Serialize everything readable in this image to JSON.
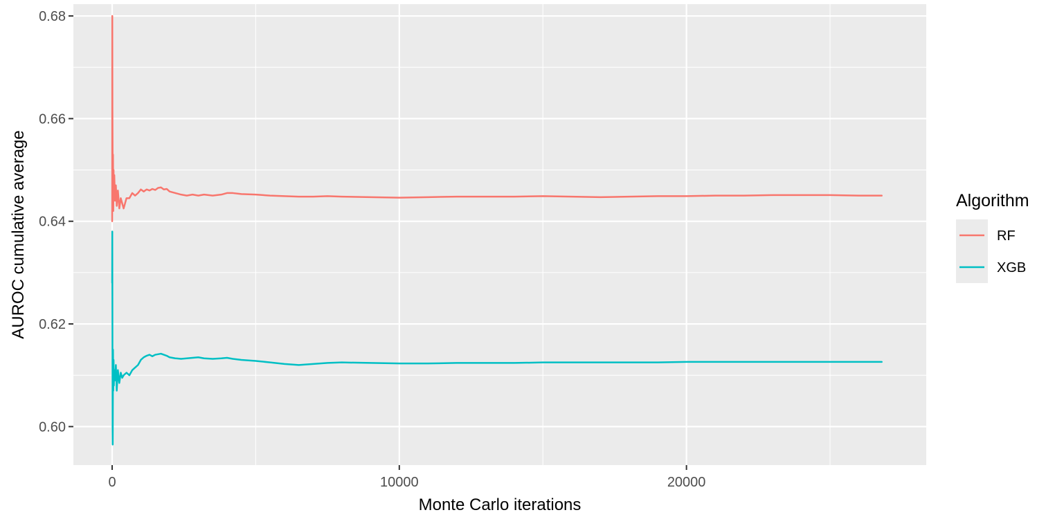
{
  "chart_data": {
    "type": "line",
    "title": "",
    "xlabel": "Monte Carlo iterations",
    "ylabel": "AUROC cumulative average",
    "xlim": [
      -1350,
      28350
    ],
    "ylim": [
      0.5925,
      0.6823
    ],
    "x_ticks": [
      0,
      10000,
      20000
    ],
    "x_tick_labels": [
      "0",
      "10000",
      "20000"
    ],
    "y_ticks": [
      0.6,
      0.62,
      0.64,
      0.66,
      0.68
    ],
    "y_tick_labels": [
      "0.60",
      "0.62",
      "0.64",
      "0.66",
      "0.68"
    ],
    "grid": true,
    "background": "#ebebeb",
    "legend": {
      "title": "Algorithm",
      "position": "right",
      "entries": [
        "RF",
        "XGB"
      ]
    },
    "series": [
      {
        "name": "RF",
        "color": "#F8766D",
        "x": [
          1,
          5,
          10,
          20,
          30,
          40,
          50,
          60,
          75,
          100,
          130,
          160,
          200,
          250,
          300,
          350,
          400,
          500,
          600,
          700,
          800,
          900,
          1000,
          1100,
          1200,
          1300,
          1400,
          1500,
          1600,
          1700,
          1800,
          1900,
          2000,
          2200,
          2400,
          2600,
          2800,
          3000,
          3200,
          3500,
          3800,
          4000,
          4200,
          4500,
          5000,
          5500,
          6000,
          6500,
          7000,
          7500,
          8000,
          9000,
          10000,
          11000,
          12000,
          13000,
          14000,
          15000,
          16000,
          17000,
          18000,
          19000,
          20000,
          21000,
          22000,
          23000,
          24000,
          25000,
          26000,
          26800
        ],
        "values": [
          0.64,
          0.68,
          0.662,
          0.648,
          0.653,
          0.642,
          0.65,
          0.645,
          0.649,
          0.644,
          0.647,
          0.643,
          0.646,
          0.6425,
          0.6445,
          0.6435,
          0.6425,
          0.6445,
          0.6445,
          0.6455,
          0.645,
          0.6455,
          0.6462,
          0.6458,
          0.6462,
          0.646,
          0.6463,
          0.6461,
          0.6465,
          0.6466,
          0.6462,
          0.6463,
          0.6458,
          0.6455,
          0.6452,
          0.645,
          0.6452,
          0.645,
          0.6452,
          0.645,
          0.6452,
          0.6455,
          0.6455,
          0.6453,
          0.6452,
          0.645,
          0.6449,
          0.6448,
          0.6448,
          0.6449,
          0.6448,
          0.6447,
          0.6446,
          0.6447,
          0.6448,
          0.6448,
          0.6448,
          0.6449,
          0.6448,
          0.6447,
          0.6448,
          0.6449,
          0.6449,
          0.645,
          0.645,
          0.6451,
          0.6451,
          0.6451,
          0.645,
          0.645
        ]
      },
      {
        "name": "XGB",
        "color": "#00BFC4",
        "x": [
          1,
          5,
          10,
          15,
          20,
          30,
          40,
          50,
          60,
          75,
          100,
          130,
          160,
          200,
          250,
          300,
          350,
          400,
          500,
          600,
          700,
          800,
          900,
          1000,
          1100,
          1200,
          1300,
          1400,
          1500,
          1600,
          1700,
          1800,
          1900,
          2000,
          2200,
          2400,
          2600,
          2800,
          3000,
          3200,
          3500,
          3800,
          4000,
          4200,
          4500,
          5000,
          5500,
          6000,
          6500,
          7000,
          7500,
          8000,
          9000,
          10000,
          11000,
          12000,
          13000,
          14000,
          15000,
          16000,
          17000,
          18000,
          19000,
          20000,
          21000,
          22000,
          23000,
          24000,
          25000,
          26000,
          26800
        ],
        "values": [
          0.628,
          0.638,
          0.62,
          0.6,
          0.5965,
          0.615,
          0.607,
          0.613,
          0.608,
          0.611,
          0.609,
          0.612,
          0.607,
          0.611,
          0.6085,
          0.6105,
          0.6095,
          0.61,
          0.6105,
          0.61,
          0.611,
          0.6115,
          0.612,
          0.613,
          0.6135,
          0.6138,
          0.614,
          0.6137,
          0.614,
          0.6141,
          0.6142,
          0.614,
          0.6138,
          0.6135,
          0.6133,
          0.6132,
          0.6133,
          0.6134,
          0.6135,
          0.6133,
          0.6132,
          0.6133,
          0.6134,
          0.6132,
          0.613,
          0.6128,
          0.6125,
          0.6122,
          0.612,
          0.6122,
          0.6124,
          0.6125,
          0.6124,
          0.6123,
          0.6123,
          0.6124,
          0.6124,
          0.6124,
          0.6125,
          0.6125,
          0.6125,
          0.6125,
          0.6125,
          0.6126,
          0.6126,
          0.6126,
          0.6126,
          0.6126,
          0.6126,
          0.6126,
          0.6126
        ]
      }
    ]
  }
}
